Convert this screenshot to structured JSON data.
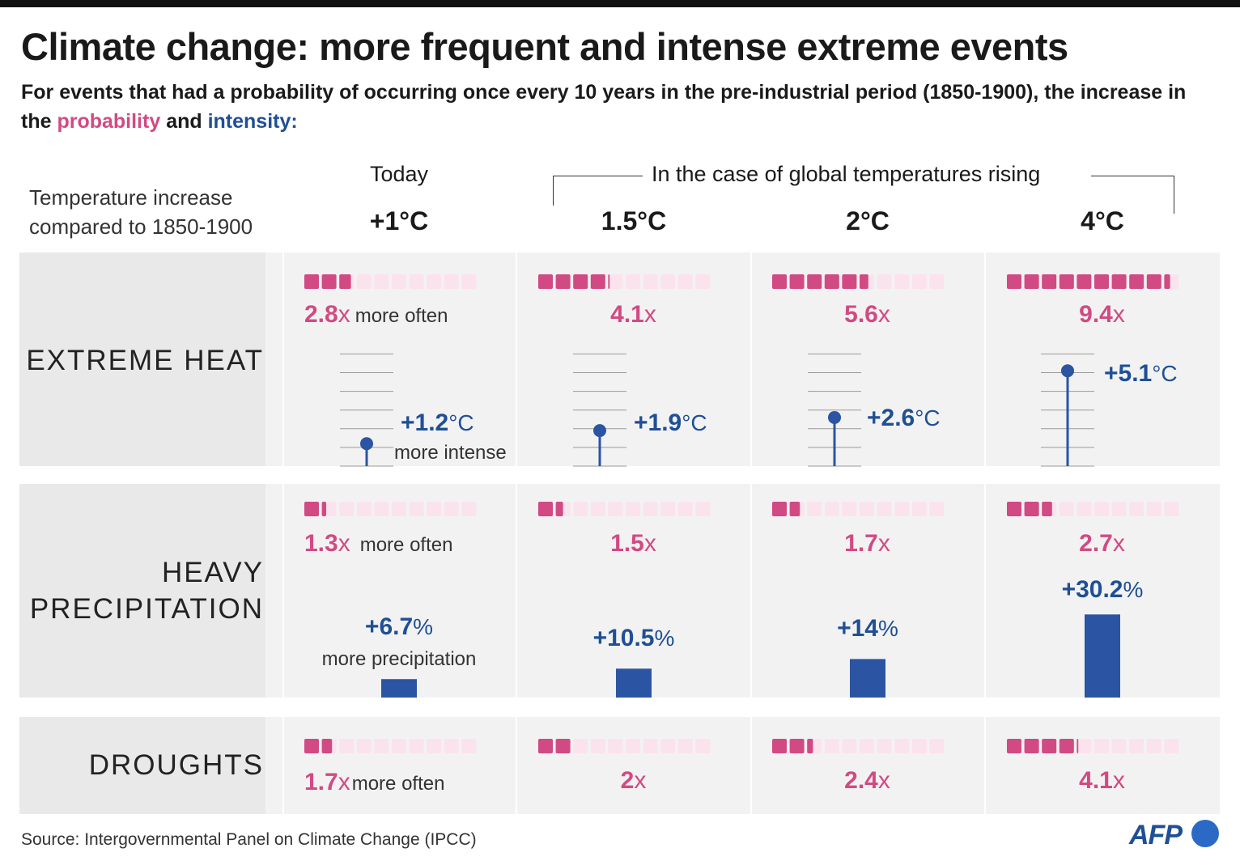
{
  "header": {
    "title": "Climate change: more frequent and intense extreme events",
    "subtitle_part1": "For events that had a probability of occurring once every 10 years in the pre-industrial period (1850-1900), the increase in the ",
    "subtitle_probability": "probability",
    "subtitle_and": " and ",
    "subtitle_intensity": "intensity:"
  },
  "columns": {
    "today_label": "Today",
    "case_label": "In the case of global temperatures rising",
    "temp_label_line1": "Temperature increase",
    "temp_label_line2": "compared to 1850-1900",
    "temps": [
      "+1°C",
      "1.5°C",
      "2°C",
      "4°C"
    ]
  },
  "colors": {
    "probability": "#d14a83",
    "probability_light": "#fbe3ee",
    "intensity": "#2b54a3",
    "band": "#f2f2f2"
  },
  "chart_data": {
    "type": "table",
    "scenarios": [
      "+1°C",
      "1.5°C",
      "2°C",
      "4°C"
    ],
    "rows": [
      {
        "name": "EXTREME HEAT",
        "name_lines": [
          "EXTREME HEAT"
        ],
        "probability_multiplier": [
          2.8,
          4.1,
          5.6,
          9.4
        ],
        "probability_labels": [
          "2.8",
          "4.1",
          "5.6",
          "9.4"
        ],
        "probability_unit": "x",
        "probability_note": "more often",
        "intensity_values": [
          1.2,
          1.9,
          2.6,
          5.1
        ],
        "intensity_labels": [
          "+1.2",
          "+1.9",
          "+2.6",
          "+5.1"
        ],
        "intensity_unit": "°C",
        "intensity_note": "more intense"
      },
      {
        "name": "HEAVY PRECIPITATION",
        "name_lines": [
          "HEAVY",
          "PRECIPITATION"
        ],
        "probability_multiplier": [
          1.3,
          1.5,
          1.7,
          2.7
        ],
        "probability_labels": [
          "1.3",
          "1.5",
          "1.7",
          "2.7"
        ],
        "probability_unit": "x",
        "probability_note": "more often",
        "intensity_values": [
          6.7,
          10.5,
          14,
          30.2
        ],
        "intensity_labels": [
          "+6.7",
          "+10.5",
          "+14",
          "+30.2"
        ],
        "intensity_unit": "%",
        "intensity_note": "more precipitation"
      },
      {
        "name": "DROUGHTS",
        "name_lines": [
          "DROUGHTS"
        ],
        "probability_multiplier": [
          1.7,
          2,
          2.4,
          4.1
        ],
        "probability_labels": [
          "1.7",
          "2",
          "2.4",
          "4.1"
        ],
        "probability_unit": "x",
        "probability_note": "more often"
      }
    ]
  },
  "footer": {
    "source": "Source: Intergovernmental Panel on Climate Change (IPCC)",
    "logo": "AFP"
  }
}
